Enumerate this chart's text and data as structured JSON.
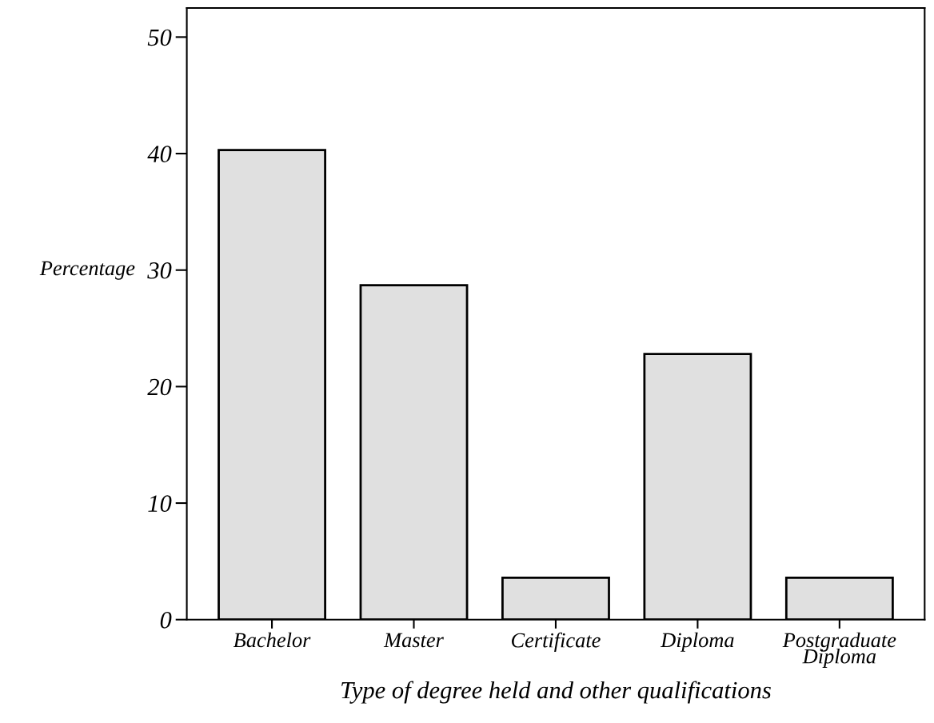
{
  "chart_data": {
    "type": "bar",
    "xlabel": "Type of degree held and other qualifications",
    "ylabel": "Percentage",
    "categories": [
      "Bachelor",
      "Master",
      "Certificate",
      "Diploma",
      "Postgraduate\nDiploma"
    ],
    "values": [
      40.3,
      28.7,
      3.6,
      22.8,
      3.6
    ],
    "color": "#e0e0e0",
    "ylim": [
      0,
      52.5
    ],
    "yticks": [
      0,
      10,
      20,
      30,
      40,
      50
    ],
    "grid": false,
    "legend": false
  }
}
